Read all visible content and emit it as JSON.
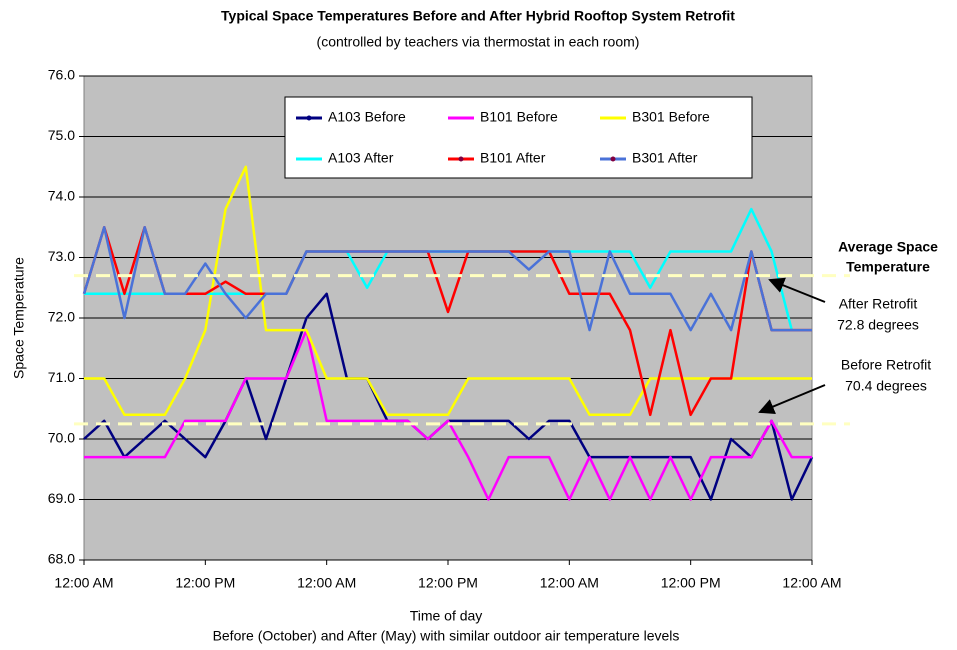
{
  "chart_data": {
    "type": "line",
    "title": "Typical Space Temperatures Before and After Hybrid Rooftop System Retrofit",
    "subtitle": "(controlled by teachers via thermostat in each room)",
    "y_label": "Space Temperature",
    "x_label": "Time of day",
    "x_sublabel": "Before (October) and After (May) with similar outdoor air temperature levels",
    "xlim": [
      0,
      72
    ],
    "xticks": [
      {
        "value": 0,
        "label": "12:00 AM"
      },
      {
        "value": 12,
        "label": "12:00 PM"
      },
      {
        "value": 24,
        "label": "12:00 AM"
      },
      {
        "value": 36,
        "label": "12:00 PM"
      },
      {
        "value": 48,
        "label": "12:00 AM"
      },
      {
        "value": 60,
        "label": "12:00 PM"
      },
      {
        "value": 72,
        "label": "12:00 AM"
      }
    ],
    "ylim": [
      68,
      76
    ],
    "yticks": [
      {
        "value": 68,
        "label": "68.0"
      },
      {
        "value": 69,
        "label": "69.0"
      },
      {
        "value": 70,
        "label": "70.0"
      },
      {
        "value": 71,
        "label": "71.0"
      },
      {
        "value": 72,
        "label": "72.0"
      },
      {
        "value": 73,
        "label": "73.0"
      },
      {
        "value": 74,
        "label": "74.0"
      },
      {
        "value": 75,
        "label": "75.0"
      },
      {
        "value": 76,
        "label": "76.0"
      }
    ],
    "grid": true,
    "x": [
      0,
      2,
      4,
      6,
      8,
      10,
      12,
      14,
      16,
      18,
      20,
      22,
      24,
      26,
      28,
      30,
      32,
      34,
      36,
      38,
      40,
      42,
      44,
      46,
      48,
      50,
      52,
      54,
      56,
      58,
      60,
      62,
      64,
      66,
      68,
      70,
      72
    ],
    "series": [
      {
        "name": "A103 Before",
        "color": "#000080",
        "marker": true,
        "values": [
          70.0,
          70.3,
          69.7,
          70.0,
          70.3,
          70.0,
          69.7,
          70.3,
          71.0,
          70.0,
          71.0,
          72.0,
          72.4,
          71.0,
          71.0,
          70.3,
          70.3,
          70.0,
          70.3,
          70.3,
          70.3,
          70.3,
          70.0,
          70.3,
          70.3,
          69.7,
          69.7,
          69.7,
          69.7,
          69.7,
          69.7,
          69.0,
          70.0,
          69.7,
          70.3,
          69.0,
          69.7
        ]
      },
      {
        "name": "B101 Before",
        "color": "#ff00ff",
        "marker": false,
        "values": [
          69.7,
          69.7,
          69.7,
          69.7,
          69.7,
          70.3,
          70.3,
          70.3,
          71.0,
          71.0,
          71.0,
          71.8,
          70.3,
          70.3,
          70.3,
          70.3,
          70.3,
          70.0,
          70.3,
          69.7,
          69.0,
          69.7,
          69.7,
          69.7,
          69.0,
          69.7,
          69.0,
          69.7,
          69.0,
          69.7,
          69.0,
          69.7,
          69.7,
          69.7,
          70.3,
          69.7,
          69.7
        ]
      },
      {
        "name": "B301 Before",
        "color": "#ffff00",
        "marker": false,
        "values": [
          71.0,
          71.0,
          70.4,
          70.4,
          70.4,
          71.0,
          71.8,
          73.8,
          74.5,
          71.8,
          71.8,
          71.8,
          71.0,
          71.0,
          71.0,
          70.4,
          70.4,
          70.4,
          70.4,
          71.0,
          71.0,
          71.0,
          71.0,
          71.0,
          71.0,
          70.4,
          70.4,
          70.4,
          71.0,
          71.0,
          71.0,
          71.0,
          71.0,
          71.0,
          71.0,
          71.0,
          71.0
        ]
      },
      {
        "name": "A103 After",
        "color": "#00ffff",
        "marker": false,
        "values": [
          72.4,
          72.4,
          72.4,
          72.4,
          72.4,
          72.4,
          72.4,
          72.4,
          72.4,
          72.4,
          72.4,
          73.1,
          73.1,
          73.1,
          72.5,
          73.1,
          73.1,
          73.1,
          73.1,
          73.1,
          73.1,
          73.1,
          73.1,
          73.1,
          73.1,
          73.1,
          73.1,
          73.1,
          72.5,
          73.1,
          73.1,
          73.1,
          73.1,
          73.8,
          73.1,
          71.8,
          null
        ]
      },
      {
        "name": "B101 After",
        "color": "#ff0000",
        "marker": true,
        "values": [
          72.4,
          73.5,
          72.4,
          73.5,
          72.4,
          72.4,
          72.4,
          72.6,
          72.4,
          72.4,
          72.4,
          73.1,
          73.1,
          73.1,
          73.1,
          73.1,
          73.1,
          73.1,
          72.1,
          73.1,
          73.1,
          73.1,
          73.1,
          73.1,
          72.4,
          72.4,
          72.4,
          71.8,
          70.4,
          71.8,
          70.4,
          71.0,
          71.0,
          73.1,
          71.8,
          71.8,
          71.8
        ]
      },
      {
        "name": "B301 After",
        "color": "#4a72d8",
        "marker": true,
        "values": [
          72.4,
          73.5,
          72.0,
          73.5,
          72.4,
          72.4,
          72.9,
          72.4,
          72.0,
          72.4,
          72.4,
          73.1,
          73.1,
          73.1,
          73.1,
          73.1,
          73.1,
          73.1,
          73.1,
          73.1,
          73.1,
          73.1,
          72.8,
          73.1,
          73.1,
          71.8,
          73.1,
          72.4,
          72.4,
          72.4,
          71.8,
          72.4,
          71.8,
          73.1,
          71.8,
          71.8,
          71.8
        ]
      }
    ],
    "reference_lines": [
      {
        "value": 72.7,
        "color": "#ffffc0"
      },
      {
        "value": 70.25,
        "color": "#ffffc0"
      }
    ],
    "annotations": [
      "Average Space",
      "Temperature",
      "After Retrofit",
      "72.8 degrees",
      "Before Retrofit",
      "70.4 degrees"
    ]
  }
}
